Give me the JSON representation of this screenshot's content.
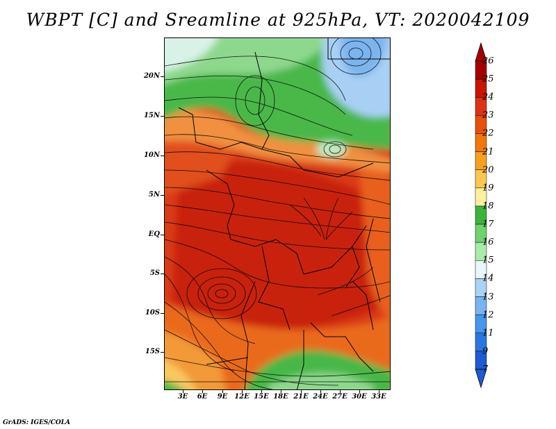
{
  "title": "WBPT [C] and Sreamline at 925hPa, VT: 2020042109",
  "credit": "GrADS: IGES/COLA",
  "lat_labels": [
    "20N",
    "15N",
    "10N",
    "5N",
    "EQ",
    "5S",
    "10S",
    "15S"
  ],
  "lon_labels": [
    "3E",
    "6E",
    "9E",
    "12E",
    "15E",
    "18E",
    "21E",
    "24E",
    "27E",
    "30E",
    "33E"
  ],
  "colorbar": {
    "labels": [
      "26",
      "25",
      "24",
      "23",
      "22",
      "21",
      "20",
      "19",
      "18",
      "17",
      "16",
      "15",
      "14",
      "13",
      "12",
      "11",
      "9",
      "7"
    ],
    "colors": [
      "#a50000",
      "#c81400",
      "#dc3214",
      "#e6500a",
      "#f0780a",
      "#f5a01e",
      "#fac850",
      "#fff0a0",
      "#3cb43c",
      "#6ed26e",
      "#aaeaaa",
      "#e6f8fa",
      "#aad2f5",
      "#78b4f0",
      "#4696eb",
      "#2878e1",
      "#1e5ad2"
    ]
  },
  "legend_colors": {
    "very_warm": "#b41e0a",
    "warm": "#d73c14",
    "orange": "#f06414",
    "light_orange": "#f5a032",
    "green": "#46be46",
    "light_green": "#96dc96",
    "pale": "#e6f8fa",
    "blue": "#96c8f0"
  }
}
